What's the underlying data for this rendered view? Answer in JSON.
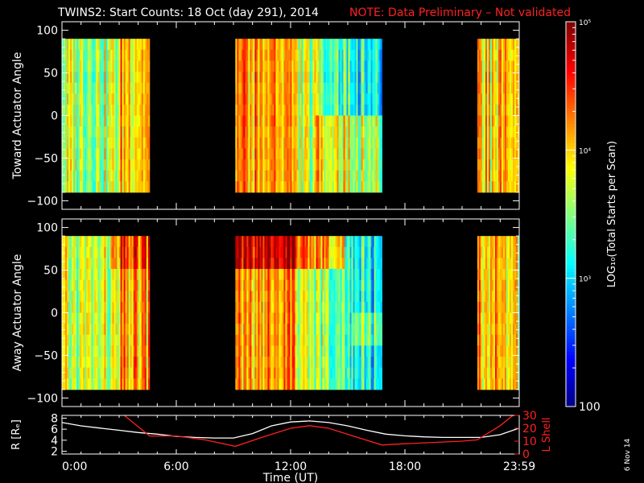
{
  "title": "TWINS2: Start Counts: 18 Oct (day 291), 2014",
  "note": "NOTE: Data Preliminary – Not validated",
  "date_stamp": "6 Nov 14",
  "colors": {
    "background": "#000000",
    "axes": "#ffffff",
    "note": "#ff2020",
    "r_line": "#ffffff",
    "lshell_line": "#ff2020"
  },
  "chart_data": [
    {
      "type": "heatmap",
      "name": "toward",
      "ylabel": "Toward Actuator Angle",
      "yticks": [
        -100,
        -50,
        0,
        50,
        100
      ],
      "ylim": [
        -110,
        110
      ],
      "data_ylim": [
        -90,
        90
      ],
      "xlim": [
        0,
        24
      ],
      "data_intervals": [
        [
          0,
          4.6
        ],
        [
          9.1,
          16.8
        ],
        [
          21.8,
          24
        ]
      ],
      "colorbar": {
        "label": "LOG₁₀(Total Starts per Scan)",
        "scale": "log",
        "range": [
          100,
          100000
        ],
        "ticks": [
          "10⁵",
          "10⁴",
          "10³",
          "100"
        ]
      }
    },
    {
      "type": "heatmap",
      "name": "away",
      "ylabel": "Away Actuator Angle",
      "yticks": [
        -100,
        -50,
        0,
        50,
        100
      ],
      "ylim": [
        -110,
        110
      ],
      "data_ylim": [
        -90,
        90
      ],
      "xlim": [
        0,
        24
      ],
      "data_intervals": [
        [
          0,
          4.6
        ],
        [
          9.1,
          16.8
        ],
        [
          21.8,
          24
        ]
      ]
    },
    {
      "type": "line",
      "name": "orbit",
      "xlabel": "Time (UT)",
      "xlim": [
        0,
        24
      ],
      "xticks": [
        0,
        6,
        12,
        18,
        24
      ],
      "xticklabels": [
        "0:00",
        "6:00",
        "12:00",
        "18:00",
        "23:59"
      ],
      "ylabel": "R [Rₑ]",
      "yticks": [
        2,
        4,
        6,
        8
      ],
      "ylim": [
        1.5,
        8.5
      ],
      "y2label": "L Shell",
      "y2ticks": [
        0,
        10,
        20,
        30
      ],
      "y2lim": [
        0,
        30
      ],
      "series": [
        {
          "axis": "left",
          "x": [
            0,
            1,
            2,
            3,
            4,
            5,
            6,
            7,
            8,
            9,
            10,
            11,
            12,
            13,
            14,
            15,
            16,
            17,
            18,
            19,
            20,
            21,
            22,
            23,
            24
          ],
          "y": [
            7.2,
            6.6,
            6.2,
            5.8,
            5.4,
            5.1,
            4.7,
            4.5,
            4.4,
            4.4,
            5.2,
            6.6,
            7.3,
            7.5,
            7.2,
            6.6,
            5.8,
            5.1,
            4.8,
            4.6,
            4.5,
            4.5,
            4.5,
            5.0,
            6.2
          ]
        },
        {
          "axis": "right",
          "x": [
            3.1,
            4.6,
            6,
            7.5,
            9.1,
            10.5,
            12,
            13,
            14,
            15.5,
            16.8,
            18,
            19.5,
            21,
            21.8,
            23,
            24
          ],
          "y": [
            32,
            14,
            14,
            11,
            6,
            13,
            20,
            22,
            20,
            13,
            7,
            8,
            9,
            10,
            11,
            22,
            34
          ]
        }
      ]
    }
  ]
}
